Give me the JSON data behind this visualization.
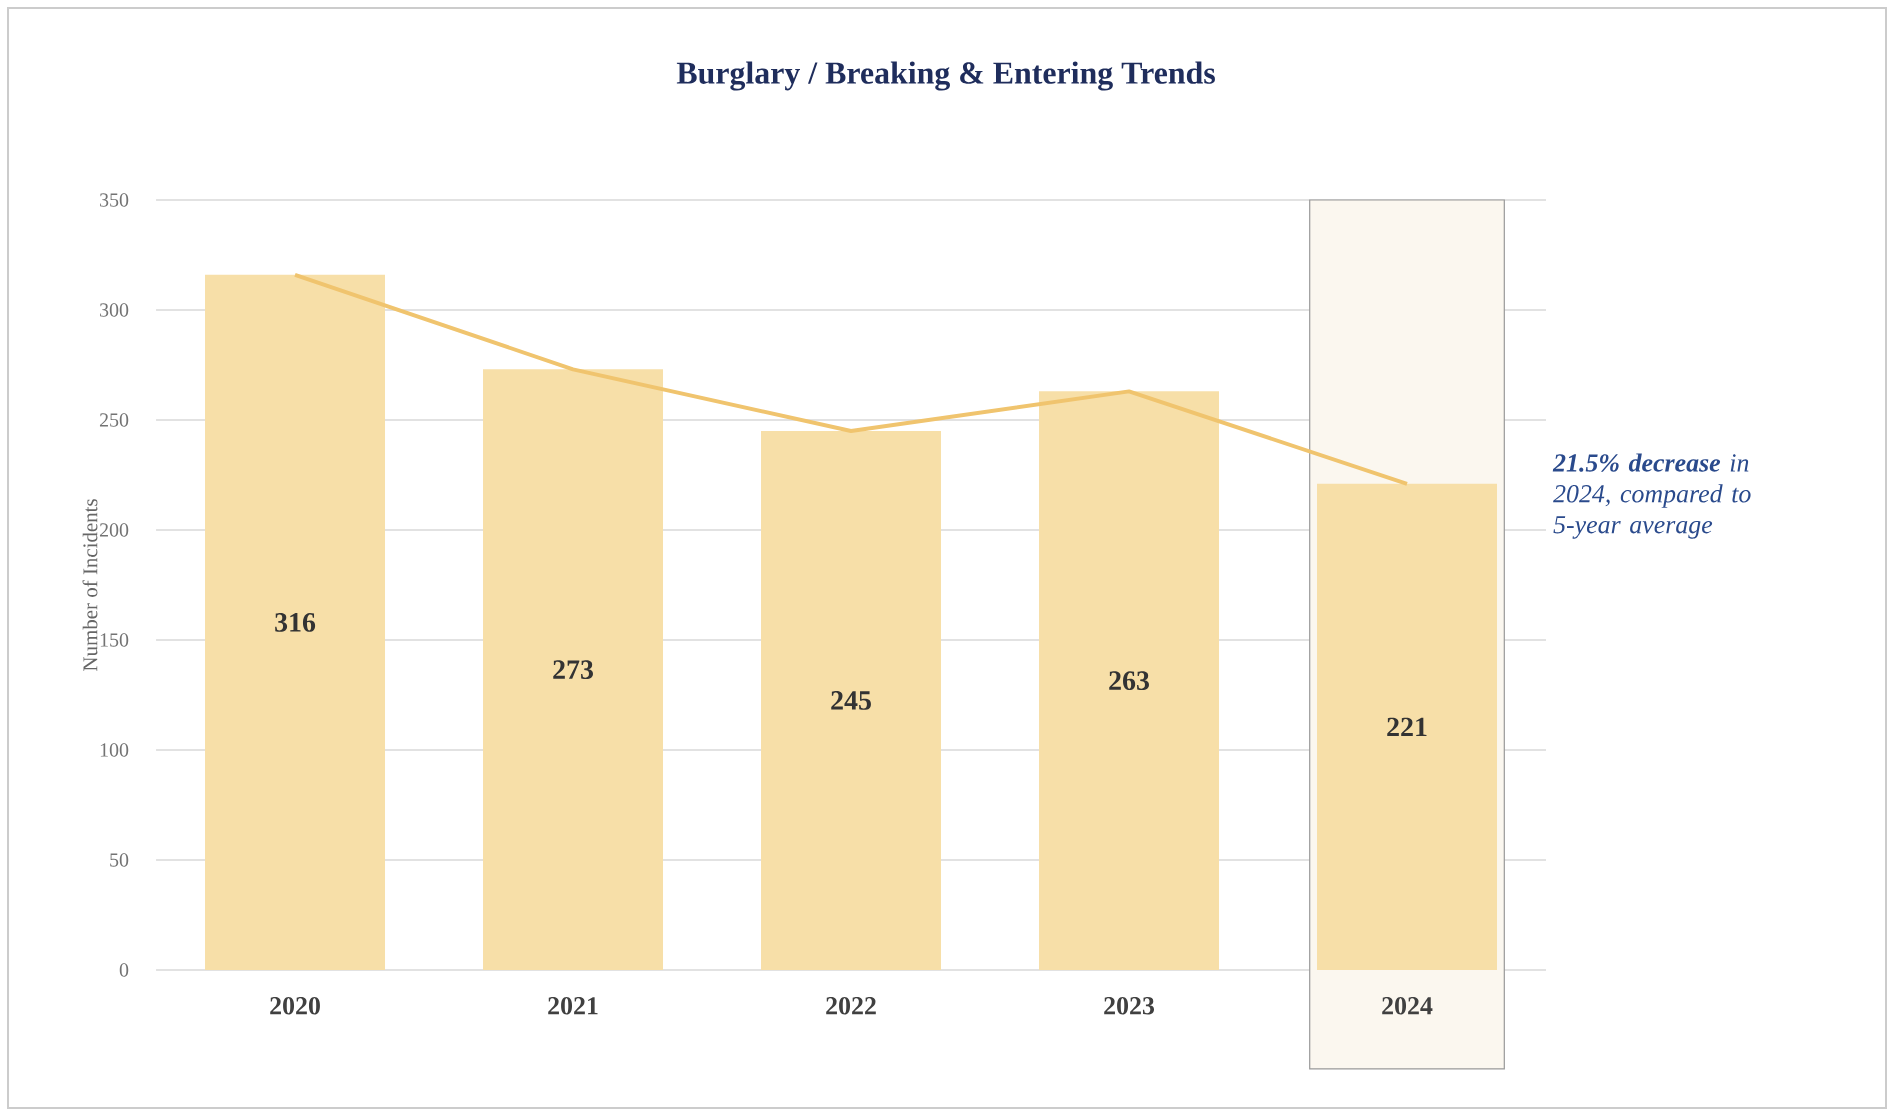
{
  "chart_data": {
    "type": "bar",
    "title": "Burglary / Breaking & Entering Trends",
    "ylabel": "Number of Incidents",
    "categories": [
      "2020",
      "2021",
      "2022",
      "2023",
      "2024"
    ],
    "series": [
      {
        "color": "#f7dfa8",
        "values": [
          316,
          273,
          245,
          263,
          221
        ],
        "data_labels": true
      },
      {
        "type": "line",
        "color": "#f0c46e",
        "values": [
          316,
          273,
          245,
          263,
          221
        ]
      }
    ],
    "ylim": [
      0,
      350
    ],
    "yticks": [
      0,
      50,
      100,
      150,
      200,
      250,
      300,
      350
    ],
    "grid": "y",
    "bands": [
      {
        "axis": "x",
        "from": "2024",
        "to": "2024",
        "color": "#fbf7ef"
      }
    ],
    "annotations": [
      "**21.5% decrease** in 2024, compared to 5-year average"
    ]
  }
}
